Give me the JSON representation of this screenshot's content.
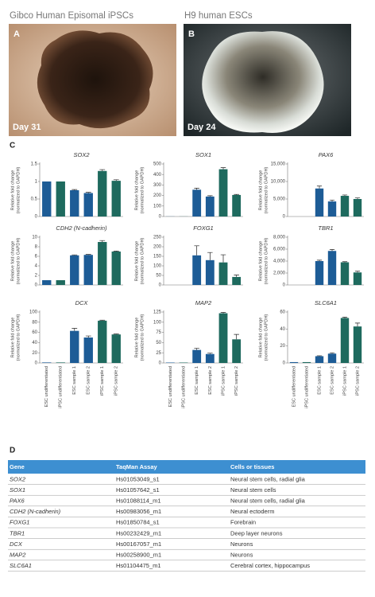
{
  "panels": [
    {
      "label": "A",
      "title": "Gibco Human Episomal iPSCs",
      "caption": "Day 31"
    },
    {
      "label": "B",
      "title": "H9 human ESCs",
      "caption": "Day 24"
    }
  ],
  "chart_label": "C",
  "chart_data": [
    {
      "type": "bar",
      "title": "SOX2",
      "ylabel": [
        "Relative fold change",
        "(normalized to GAPDH)"
      ],
      "categories": [
        null,
        null,
        null,
        null,
        null,
        null
      ],
      "values": [
        1.0,
        1.0,
        0.75,
        0.67,
        1.3,
        1.02
      ],
      "errors": [
        0,
        0,
        0.02,
        0.02,
        0.04,
        0.03
      ],
      "colors": [
        "#1d5c96",
        "#1e6a5e",
        "#1d5c96",
        "#1d5c96",
        "#1e6a5e",
        "#1e6a5e"
      ],
      "ylim": [
        0,
        1.5
      ],
      "yticks": [
        0,
        0.5,
        1,
        1.5
      ]
    },
    {
      "type": "bar",
      "title": "SOX1",
      "ylabel": [
        "Relative fold change",
        "(normalized to GAPDH)"
      ],
      "categories": [
        null,
        null,
        null,
        null,
        null,
        null
      ],
      "values": [
        1,
        1,
        255,
        190,
        450,
        205
      ],
      "errors": [
        0,
        0,
        15,
        8,
        15,
        5
      ],
      "colors": [
        "#1d5c96",
        "#1e6a5e",
        "#1d5c96",
        "#1d5c96",
        "#1e6a5e",
        "#1e6a5e"
      ],
      "ylim": [
        0,
        500
      ],
      "yticks": [
        0,
        100,
        200,
        300,
        400,
        500
      ]
    },
    {
      "type": "bar",
      "title": "PAX6",
      "ylabel": [
        "Relative fold change",
        "(normalized to GAPDH)"
      ],
      "categories": [
        null,
        null,
        null,
        null,
        null,
        null
      ],
      "values": [
        1,
        1,
        8000,
        4300,
        5900,
        5000
      ],
      "errors": [
        0,
        0,
        700,
        400,
        250,
        300
      ],
      "colors": [
        "#1d5c96",
        "#1e6a5e",
        "#1d5c96",
        "#1d5c96",
        "#1e6a5e",
        "#1e6a5e"
      ],
      "ylim": [
        0,
        15000
      ],
      "yticks": [
        0,
        {
          "value": 5000,
          "label": "5,000"
        },
        {
          "value": 10000,
          "label": "10,000"
        },
        {
          "value": 15000,
          "label": "15,000"
        }
      ]
    },
    {
      "type": "bar",
      "title": "CDH2 (N-cadherin)",
      "ylabel": [
        "Relative fold change",
        "(normalized to GAPDH)"
      ],
      "categories": [
        null,
        null,
        null,
        null,
        null,
        null
      ],
      "values": [
        1,
        1,
        6.2,
        6.3,
        9,
        7
      ],
      "errors": [
        0,
        0,
        0.1,
        0.1,
        0.3,
        0.1
      ],
      "colors": [
        "#1d5c96",
        "#1e6a5e",
        "#1d5c96",
        "#1d5c96",
        "#1e6a5e",
        "#1e6a5e"
      ],
      "ylim": [
        0,
        10
      ],
      "yticks": [
        0,
        2,
        4,
        6,
        8,
        10
      ]
    },
    {
      "type": "bar",
      "title": "FOXG1",
      "ylabel": [
        "Relative fold change",
        "(normalized to GAPDH)"
      ],
      "categories": [
        null,
        null,
        null,
        null,
        null,
        null
      ],
      "values": [
        0,
        0,
        155,
        130,
        118,
        42
      ],
      "errors": [
        0,
        0,
        50,
        40,
        40,
        10
      ],
      "colors": [
        "#1d5c96",
        "#1e6a5e",
        "#1d5c96",
        "#1d5c96",
        "#1e6a5e",
        "#1e6a5e"
      ],
      "ylim": [
        0,
        250
      ],
      "yticks": [
        0,
        50,
        100,
        150,
        200,
        250
      ]
    },
    {
      "type": "bar",
      "title": "TBR1",
      "ylabel": [
        "Relative fold change",
        "(normalized to GAPDH)"
      ],
      "categories": [
        null,
        null,
        null,
        null,
        null,
        null
      ],
      "values": [
        0,
        0,
        4000,
        5700,
        3800,
        2100
      ],
      "errors": [
        0,
        0,
        150,
        250,
        100,
        200
      ],
      "colors": [
        "#1d5c96",
        "#1e6a5e",
        "#1d5c96",
        "#1d5c96",
        "#1e6a5e",
        "#1e6a5e"
      ],
      "ylim": [
        0,
        8000
      ],
      "yticks": [
        0,
        {
          "value": 2000,
          "label": "2,000"
        },
        {
          "value": 4000,
          "label": "4,000"
        },
        {
          "value": 6000,
          "label": "6,000"
        },
        {
          "value": 8000,
          "label": "8,000"
        }
      ]
    },
    {
      "type": "bar",
      "title": "DCX",
      "ylabel": [
        "Relative fold change",
        "(normalized to GAPDH)"
      ],
      "categories": [
        "ESC undifferentiated",
        "iPSC undifferentiated",
        "ESC sample 1",
        "ESC sample 2",
        "iPSC sample 1",
        "iPSC sample 2"
      ],
      "values": [
        1,
        1,
        63,
        50,
        83,
        56
      ],
      "errors": [
        0,
        0,
        5,
        3,
        1,
        1
      ],
      "colors": [
        "#1d5c96",
        "#1e6a5e",
        "#1d5c96",
        "#1d5c96",
        "#1e6a5e",
        "#1e6a5e"
      ],
      "ylim": [
        0,
        100
      ],
      "yticks": [
        0,
        20,
        40,
        60,
        80,
        100
      ]
    },
    {
      "type": "bar",
      "title": "MAP2",
      "ylabel": [
        "Relative fold change",
        "(normalized to GAPDH)"
      ],
      "categories": [
        "ESC undifferentiated",
        "iPSC undifferentiated",
        "ESC sample 1",
        "ESC sample 2",
        "iPSC sample 1",
        "iPSC sample 2"
      ],
      "values": [
        1,
        1,
        32,
        22,
        122,
        58
      ],
      "errors": [
        0,
        0,
        4,
        2,
        2,
        12
      ],
      "colors": [
        "#1d5c96",
        "#1e6a5e",
        "#1d5c96",
        "#1d5c96",
        "#1e6a5e",
        "#1e6a5e"
      ],
      "ylim": [
        0,
        125
      ],
      "yticks": [
        0,
        25,
        50,
        75,
        100,
        125
      ]
    },
    {
      "type": "bar",
      "title": "SLC6A1",
      "ylabel": [
        "Relative fold change",
        "(normalized to GAPDH)"
      ],
      "categories": [
        "ESC undifferentiated",
        "iPSC undifferentiated",
        "ESC sample 1",
        "ESC sample 2",
        "iPSC sample 1",
        "iPSC sample 2"
      ],
      "values": [
        1,
        1,
        8,
        11,
        53,
        43
      ],
      "errors": [
        0,
        0,
        0.5,
        1,
        1,
        4
      ],
      "colors": [
        "#1d5c96",
        "#1e6a5e",
        "#1d5c96",
        "#1d5c96",
        "#1e6a5e",
        "#1e6a5e"
      ],
      "ylim": [
        0,
        60
      ],
      "yticks": [
        0,
        20,
        40,
        60
      ]
    }
  ],
  "table_label": "D",
  "table": {
    "header": [
      "Gene",
      "TaqMan Assay",
      "Cells or tissues"
    ],
    "rows": [
      [
        "SOX2",
        "Hs01053049_s1",
        "Neural stem cells, radial glia"
      ],
      [
        "SOX1",
        "Hs01057642_s1",
        "Neural stem cells"
      ],
      [
        "PAX6",
        "Hs01088114_m1",
        "Neural stem cells, radial glia"
      ],
      [
        "CDH2 (N-cadherin)",
        "Hs00983056_m1",
        "Neural ectoderm"
      ],
      [
        "FOXG1",
        "Hs01850784_s1",
        "Forebrain"
      ],
      [
        "TBR1",
        "Hs00232429_m1",
        "Deep layer neurons"
      ],
      [
        "DCX",
        "Hs00167057_m1",
        "Neurons"
      ],
      [
        "MAP2",
        "Hs00258900_m1",
        "Neurons"
      ],
      [
        "SLC6A1",
        "Hs01104475_m1",
        "Cerebral cortex, hippocampus"
      ]
    ]
  }
}
